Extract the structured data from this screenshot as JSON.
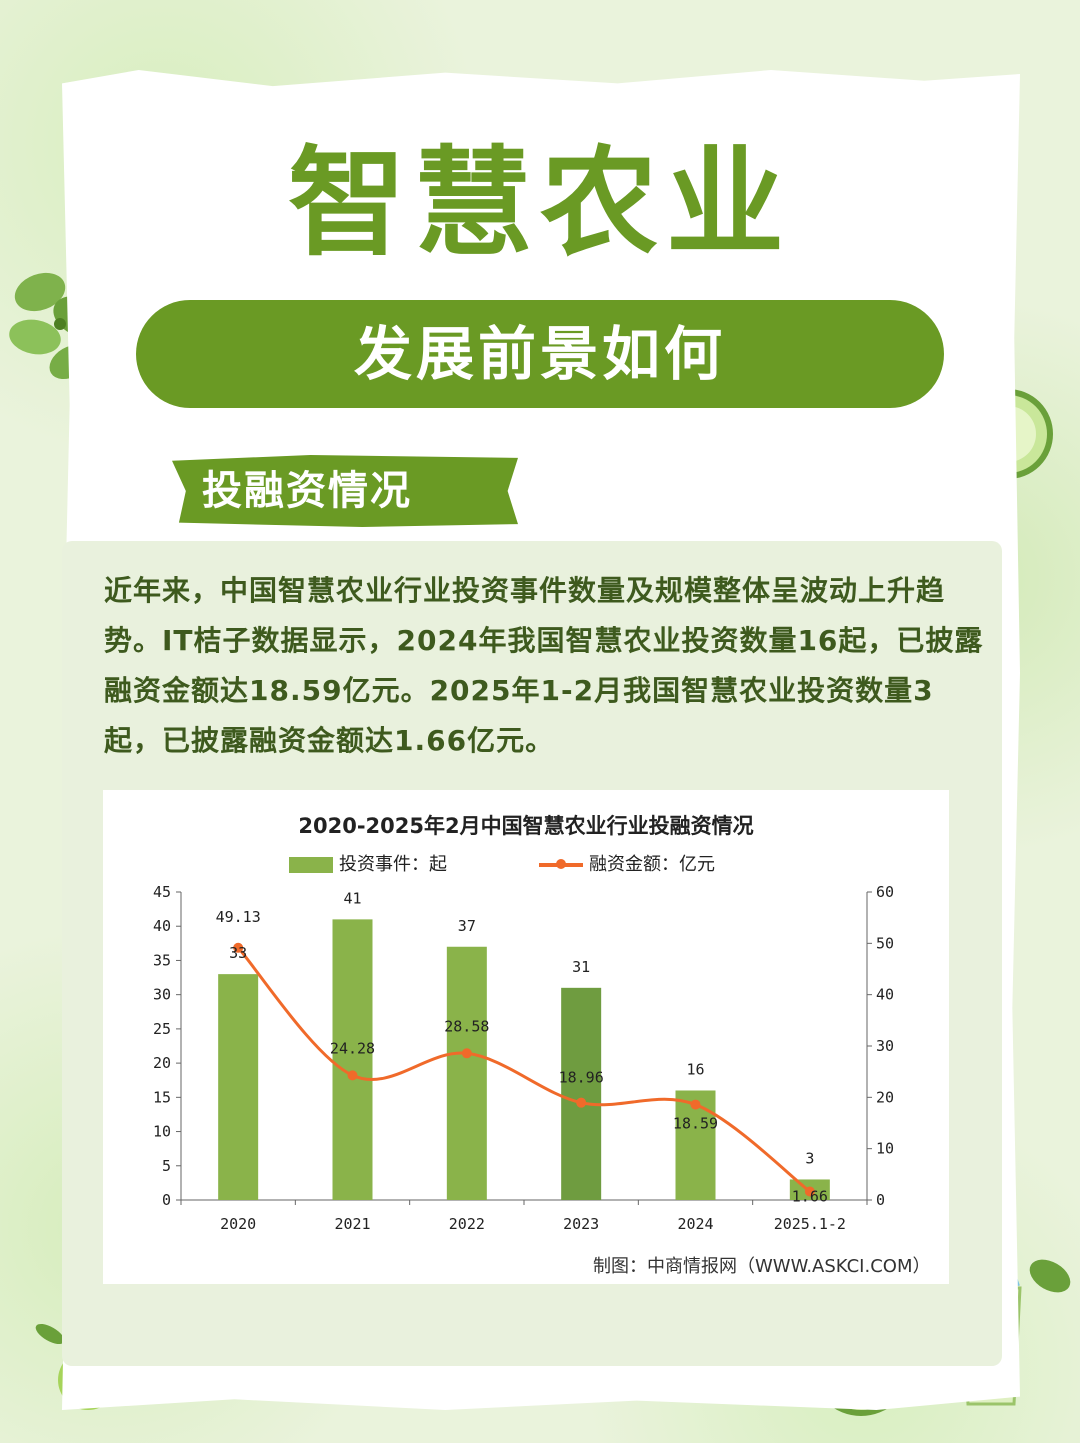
{
  "header": {
    "title": "智慧农业",
    "subtitle": "发展前景如何"
  },
  "section": {
    "label": "投融资情况"
  },
  "intro": {
    "text": "近年来，中国智慧农业行业投资事件数量及规模整体呈波动上升趋势。IT桔子数据显示，2024年我国智慧农业投资数量16起，已披露融资金额达18.59亿元。2025年1-2月我国智慧农业投资数量3起，已披露融资金额达1.66亿元。"
  },
  "chart_data": {
    "type": "bar",
    "title": "2020-2025年2月中国智慧农业行业投融资情况",
    "categories": [
      "2020",
      "2021",
      "2022",
      "2023",
      "2024",
      "2025.1-2"
    ],
    "series": [
      {
        "name": "投资事件：起",
        "type": "bar",
        "axis": "left",
        "values": [
          33,
          41,
          37,
          31,
          16,
          3
        ]
      },
      {
        "name": "融资金额：亿元",
        "type": "line",
        "axis": "right",
        "values": [
          49.13,
          24.28,
          28.58,
          18.96,
          18.59,
          1.66
        ]
      }
    ],
    "bar_labels": [
      "33",
      "41",
      "37",
      "31",
      "16",
      "3"
    ],
    "line_labels": [
      "49.13",
      "24.28",
      "28.58",
      "18.96",
      "18.59",
      "1.66"
    ],
    "ylim_left": [
      0,
      45
    ],
    "yticks_left": [
      "0",
      "5",
      "10",
      "15",
      "20",
      "25",
      "30",
      "35",
      "40",
      "45"
    ],
    "ylim_right": [
      0,
      60
    ],
    "yticks_right": [
      "0",
      "10",
      "20",
      "30",
      "40",
      "50",
      "60"
    ],
    "legend_position": "top",
    "grid": false,
    "source": "制图：中商情报网（WWW.ASKCI.COM）",
    "colors": {
      "bar": "#8ab34a",
      "bar_highlight": "#6f9c40",
      "line": "#f06a2a"
    }
  }
}
